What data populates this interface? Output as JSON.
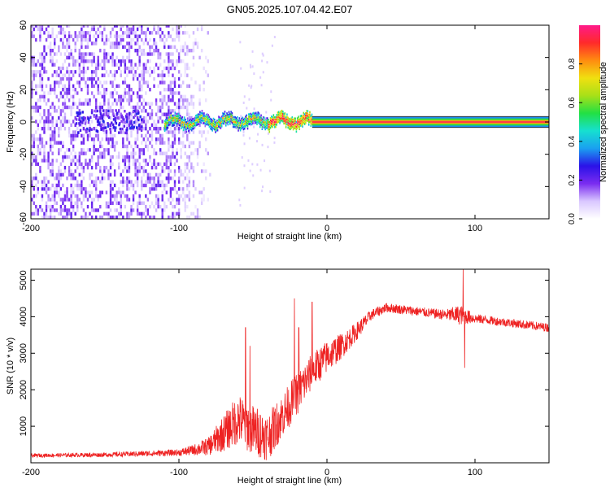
{
  "figure": {
    "title": "GN05.2025.107.04.42.E07"
  },
  "colors": {
    "snr_line": "#ee2222",
    "colormap": [
      "#ffffff",
      "#d9c7ff",
      "#7a2cf0",
      "#2a12e8",
      "#1aa0f0",
      "#16e0d0",
      "#22e044",
      "#a8e018",
      "#f0e010",
      "#ff8c10",
      "#ff2a2a",
      "#ff1a8a"
    ]
  },
  "chart_data": [
    {
      "type": "heatmap",
      "title": "GN05.2025.107.04.42.E07",
      "xlabel": "Height of straight line (km)",
      "ylabel": "Frequency (Hz)",
      "xlim": [
        -200,
        150
      ],
      "ylim": [
        -60,
        60
      ],
      "x_ticks": [
        -200,
        -100,
        0,
        100
      ],
      "x_tick_labels": [
        "-200",
        "-100",
        "0",
        "100"
      ],
      "y_ticks": [
        -60,
        -40,
        -20,
        0,
        20,
        40,
        60
      ],
      "y_tick_labels": [
        "-60",
        "-40",
        "-20",
        "0",
        "20",
        "40",
        "60"
      ],
      "colorbar": {
        "label": "Normalized spectral amplitude",
        "range": [
          0.0,
          1.0
        ],
        "ticks": [
          0.0,
          0.2,
          0.4,
          0.6,
          0.8
        ],
        "tick_labels": [
          "0.0",
          "0.2",
          "0.4",
          "0.6",
          "0.8"
        ]
      },
      "features": [
        {
          "name": "diffuse noise",
          "x_range": [
            -200,
            -78
          ],
          "y_range": [
            -60,
            60
          ],
          "amplitude": 0.12
        },
        {
          "name": "main line (wobbly)",
          "x_range": [
            -110,
            -10
          ],
          "freq_hz": 0,
          "amplitude": 0.5
        },
        {
          "name": "main line (straight)",
          "x_range": [
            -10,
            150
          ],
          "freq_hz": 0,
          "amplitude": 0.95
        }
      ],
      "grid": false
    },
    {
      "type": "line",
      "xlabel": "Height of straight line (km)",
      "ylabel": "SNR (10 * v/v)",
      "xlim": [
        -200,
        150
      ],
      "ylim": [
        0,
        5300
      ],
      "x_ticks": [
        -200,
        -100,
        0,
        100
      ],
      "x_tick_labels": [
        "-200",
        "-100",
        "0",
        "100"
      ],
      "y_ticks": [
        1000,
        2000,
        3000,
        4000,
        5000
      ],
      "y_tick_labels": [
        "1000",
        "2000",
        "3000",
        "4000",
        "5000"
      ],
      "grid": false,
      "envelope": {
        "x": [
          -200,
          -150,
          -100,
          -90,
          -80,
          -70,
          -60,
          -50,
          -40,
          -30,
          -20,
          -10,
          0,
          10,
          20,
          30,
          40,
          50,
          60,
          70,
          80,
          90,
          100,
          110,
          120,
          130,
          140,
          150
        ],
        "y": [
          200,
          220,
          280,
          350,
          450,
          800,
          1200,
          900,
          700,
          1300,
          1900,
          2500,
          2900,
          3200,
          3600,
          4050,
          4250,
          4200,
          4150,
          4100,
          4050,
          4050,
          3950,
          3900,
          3850,
          3800,
          3750,
          3700
        ],
        "noise": [
          50,
          60,
          90,
          150,
          250,
          500,
          700,
          700,
          650,
          600,
          600,
          500,
          450,
          350,
          250,
          150,
          130,
          130,
          130,
          130,
          150,
          280,
          130,
          120,
          120,
          120,
          120,
          120
        ]
      },
      "spikes": [
        {
          "x": -55,
          "y": 3700
        },
        {
          "x": -52,
          "y": 3200
        },
        {
          "x": -22,
          "y": 4500
        },
        {
          "x": -19,
          "y": 3700
        },
        {
          "x": -10,
          "y": 4400
        },
        {
          "x": 92,
          "y": 5300
        },
        {
          "x": 93,
          "y": 2600
        }
      ]
    }
  ]
}
